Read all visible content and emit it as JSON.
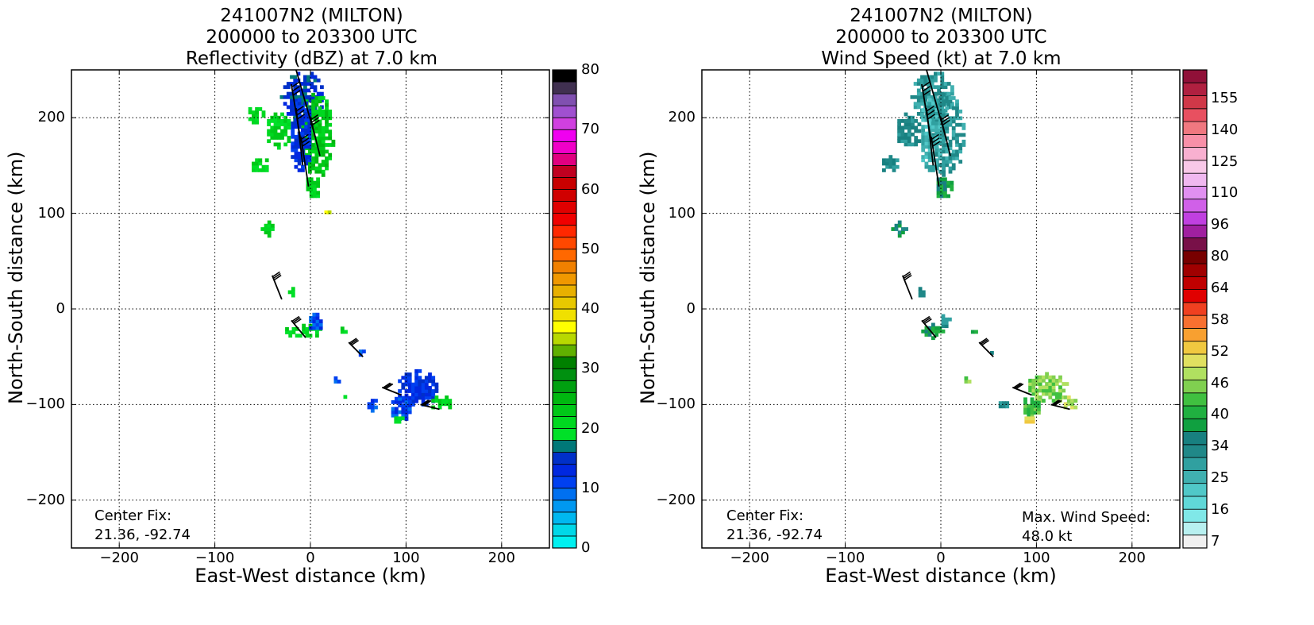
{
  "chart_data": [
    {
      "type": "heatmap",
      "title": [
        "241007N2 (MILTON)",
        "200000 to 203300 UTC",
        "Reflectivity (dBZ) at 7.0 km"
      ],
      "xlabel": "East-West distance (km)",
      "ylabel": "North-South distance (km)",
      "xlim": [
        -250,
        250
      ],
      "ylim": [
        -250,
        250
      ],
      "xticks": [
        -200,
        -100,
        0,
        100,
        200
      ],
      "yticks": [
        -200,
        -100,
        0,
        100,
        200
      ],
      "xtick_labels": [
        "−200",
        "−100",
        "0",
        "100",
        "200"
      ],
      "ytick_labels": [
        "−200",
        "−100",
        "0",
        "100",
        "200"
      ],
      "grid": true,
      "annotation": [
        "Center Fix:",
        "21.36, -92.74"
      ],
      "colorbar": {
        "min": 0,
        "max": 80,
        "step": 2.5,
        "tick_values": [
          0,
          10,
          20,
          30,
          40,
          50,
          60,
          70,
          80
        ],
        "tick_labels": [
          "0",
          "10",
          "20",
          "30",
          "40",
          "50",
          "60",
          "70",
          "80"
        ],
        "colors": [
          "#00f0f0",
          "#00d8e8",
          "#00b8f0",
          "#0098f0",
          "#0070f0",
          "#0040f0",
          "#0028e0",
          "#0030c8",
          "#007878",
          "#00e028",
          "#00d820",
          "#00c818",
          "#00b810",
          "#00a010",
          "#009010",
          "#008000",
          "#60b000",
          "#b8d800",
          "#ffff00",
          "#f0e000",
          "#e8c800",
          "#e8b000",
          "#f09800",
          "#f08000",
          "#ff6800",
          "#ff4800",
          "#ff2800",
          "#f00000",
          "#e00000",
          "#d00000",
          "#c80000",
          "#c00020",
          "#e00080",
          "#f000c8",
          "#f000f0",
          "#d040e0",
          "#a050d0",
          "#8050b0",
          "#403050",
          "#000000"
        ]
      },
      "echo_regions": [
        {
          "cx": -10,
          "cy": 220,
          "rx": 22,
          "ry": 28,
          "level": 7
        },
        {
          "cx": 5,
          "cy": 180,
          "rx": 18,
          "ry": 45,
          "level": 11
        },
        {
          "cx": -12,
          "cy": 180,
          "rx": 12,
          "ry": 40,
          "level": 6
        },
        {
          "cx": -35,
          "cy": 185,
          "rx": 14,
          "ry": 18,
          "level": 10
        },
        {
          "cx": -55,
          "cy": 150,
          "rx": 10,
          "ry": 10,
          "level": 10
        },
        {
          "cx": -60,
          "cy": 200,
          "rx": 12,
          "ry": 10,
          "level": 10
        },
        {
          "cx": 2,
          "cy": 125,
          "rx": 10,
          "ry": 12,
          "level": 10
        },
        {
          "cx": -45,
          "cy": 82,
          "rx": 7,
          "ry": 7,
          "level": 10
        },
        {
          "cx": 15,
          "cy": 100,
          "rx": 4,
          "ry": 4,
          "level": 17
        },
        {
          "cx": -22,
          "cy": 15,
          "rx": 5,
          "ry": 6,
          "level": 10
        },
        {
          "cx": -10,
          "cy": -25,
          "rx": 20,
          "ry": 8,
          "level": 10
        },
        {
          "cx": 3,
          "cy": -15,
          "rx": 8,
          "ry": 10,
          "level": 5
        },
        {
          "cx": 32,
          "cy": -25,
          "rx": 4,
          "ry": 4,
          "level": 10
        },
        {
          "cx": 52,
          "cy": -47,
          "rx": 5,
          "ry": 6,
          "level": 5
        },
        {
          "cx": 25,
          "cy": -77,
          "rx": 4,
          "ry": 4,
          "level": 5
        },
        {
          "cx": 35,
          "cy": -93,
          "rx": 4,
          "ry": 4,
          "level": 10
        },
        {
          "cx": 63,
          "cy": -102,
          "rx": 7,
          "ry": 6,
          "level": 5
        },
        {
          "cx": 110,
          "cy": -85,
          "rx": 22,
          "ry": 20,
          "level": 6
        },
        {
          "cx": 93,
          "cy": -105,
          "rx": 12,
          "ry": 15,
          "level": 5
        },
        {
          "cx": 135,
          "cy": -100,
          "rx": 12,
          "ry": 8,
          "level": 10
        },
        {
          "cx": 90,
          "cy": -118,
          "rx": 6,
          "ry": 5,
          "level": 10
        }
      ]
    },
    {
      "type": "heatmap",
      "title": [
        "241007N2 (MILTON)",
        "200000 to 203300 UTC",
        "Wind Speed (kt) at 7.0 km"
      ],
      "xlabel": "East-West distance (km)",
      "ylabel": "North-South distance (km)",
      "xlim": [
        -250,
        250
      ],
      "ylim": [
        -250,
        250
      ],
      "xticks": [
        -200,
        -100,
        0,
        100,
        200
      ],
      "yticks": [
        -200,
        -100,
        0,
        100,
        200
      ],
      "xtick_labels": [
        "−200",
        "−100",
        "0",
        "100",
        "200"
      ],
      "ytick_labels": [
        "−200",
        "−100",
        "0",
        "100",
        "200"
      ],
      "grid": true,
      "annotation": [
        "Center Fix:",
        "21.36, -92.74"
      ],
      "max_wind_text": [
        "Max. Wind Speed:",
        "48.0 kt"
      ],
      "max_wind_speed_kt": 48.0,
      "colorbar": {
        "levels": 29,
        "tick_labels": [
          "7",
          "16",
          "25",
          "34",
          "40",
          "46",
          "52",
          "58",
          "64",
          "80",
          "96",
          "110",
          "125",
          "140",
          "155"
        ],
        "tick_indices": [
          0,
          3,
          6,
          9,
          11,
          13,
          15,
          17,
          19,
          21,
          23,
          25,
          27,
          29,
          31
        ],
        "colors": [
          "#f0f0f0",
          "#b8f0f0",
          "#80e8e8",
          "#60d8d8",
          "#50c8c8",
          "#40b0b0",
          "#30a0a0",
          "#208888",
          "#188080",
          "#10a040",
          "#20b040",
          "#40c040",
          "#80d050",
          "#b0e060",
          "#e0e060",
          "#f0c840",
          "#f8a030",
          "#f87030",
          "#f04020",
          "#e00000",
          "#c00000",
          "#a00000",
          "#780000",
          "#781048",
          "#a020a0",
          "#c040e0",
          "#d060e8",
          "#e090f0",
          "#f0b8f0",
          "#f8c8e8",
          "#f8b0d0",
          "#f890a8",
          "#f07880",
          "#e85060",
          "#d03848",
          "#b02040",
          "#901038"
        ]
      },
      "echo_regions": [
        {
          "cx": -10,
          "cy": 220,
          "rx": 22,
          "ry": 28,
          "level": 6
        },
        {
          "cx": 5,
          "cy": 180,
          "rx": 18,
          "ry": 45,
          "level": 6
        },
        {
          "cx": -12,
          "cy": 180,
          "rx": 12,
          "ry": 40,
          "level": 5
        },
        {
          "cx": -35,
          "cy": 185,
          "rx": 14,
          "ry": 18,
          "level": 7
        },
        {
          "cx": -55,
          "cy": 150,
          "rx": 10,
          "ry": 10,
          "level": 7
        },
        {
          "cx": 2,
          "cy": 125,
          "rx": 10,
          "ry": 12,
          "level": 9
        },
        {
          "cx": -45,
          "cy": 82,
          "rx": 7,
          "ry": 7,
          "level": 8
        },
        {
          "cx": -22,
          "cy": 15,
          "rx": 5,
          "ry": 6,
          "level": 7
        },
        {
          "cx": -10,
          "cy": -25,
          "rx": 14,
          "ry": 7,
          "level": 9
        },
        {
          "cx": 3,
          "cy": -15,
          "rx": 6,
          "ry": 8,
          "level": 7
        },
        {
          "cx": 32,
          "cy": -25,
          "rx": 4,
          "ry": 4,
          "level": 10
        },
        {
          "cx": 52,
          "cy": -47,
          "rx": 4,
          "ry": 4,
          "level": 7
        },
        {
          "cx": 25,
          "cy": -77,
          "rx": 4,
          "ry": 4,
          "level": 12
        },
        {
          "cx": 63,
          "cy": -102,
          "rx": 6,
          "ry": 5,
          "level": 7
        },
        {
          "cx": 110,
          "cy": -85,
          "rx": 22,
          "ry": 16,
          "level": 12
        },
        {
          "cx": 93,
          "cy": -105,
          "rx": 10,
          "ry": 12,
          "level": 11
        },
        {
          "cx": 135,
          "cy": -100,
          "rx": 10,
          "ry": 8,
          "level": 13
        },
        {
          "cx": 90,
          "cy": -118,
          "rx": 6,
          "ry": 5,
          "level": 14
        }
      ]
    }
  ]
}
